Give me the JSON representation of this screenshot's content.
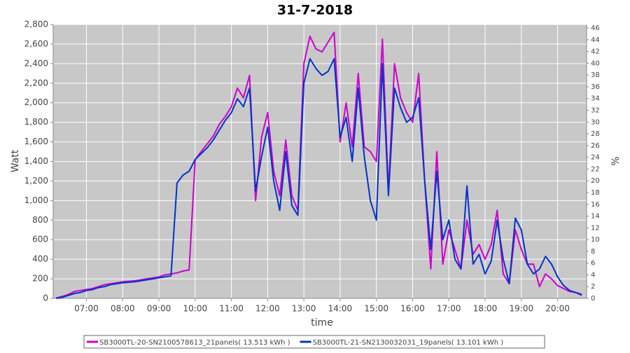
{
  "chart_data": {
    "type": "line",
    "title": "31-7-2018",
    "x_label": "time",
    "y_label": "Watt",
    "y2_label": "%",
    "x": [
      "06:10",
      "06:20",
      "06:30",
      "06:40",
      "06:50",
      "07:00",
      "07:10",
      "07:20",
      "07:30",
      "07:40",
      "07:50",
      "08:00",
      "08:10",
      "08:20",
      "08:30",
      "08:40",
      "08:50",
      "09:00",
      "09:10",
      "09:20",
      "09:30",
      "09:40",
      "09:50",
      "10:00",
      "10:10",
      "10:20",
      "10:30",
      "10:40",
      "10:50",
      "11:00",
      "11:10",
      "11:20",
      "11:30",
      "11:40",
      "11:50",
      "12:00",
      "12:10",
      "12:20",
      "12:30",
      "12:40",
      "12:50",
      "13:00",
      "13:10",
      "13:20",
      "13:30",
      "13:40",
      "13:50",
      "14:00",
      "14:10",
      "14:20",
      "14:30",
      "14:40",
      "14:50",
      "15:00",
      "15:10",
      "15:20",
      "15:30",
      "15:40",
      "15:50",
      "16:00",
      "16:10",
      "16:20",
      "16:30",
      "16:40",
      "16:50",
      "17:00",
      "17:10",
      "17:20",
      "17:30",
      "17:40",
      "17:50",
      "18:00",
      "18:10",
      "18:20",
      "18:30",
      "18:40",
      "18:50",
      "19:00",
      "19:10",
      "19:20",
      "19:30",
      "19:40",
      "19:50",
      "20:00",
      "20:10",
      "20:20",
      "20:30",
      "20:40"
    ],
    "series": [
      {
        "name": "SB3000TL-20-SN2100578613_21panels( 13.513 kWh )",
        "color": "#cc00cc",
        "values": [
          5,
          20,
          40,
          70,
          80,
          90,
          100,
          120,
          140,
          150,
          160,
          170,
          175,
          180,
          190,
          200,
          210,
          220,
          240,
          250,
          260,
          280,
          290,
          1420,
          1500,
          1580,
          1660,
          1780,
          1860,
          1960,
          2150,
          2050,
          2280,
          1000,
          1650,
          1900,
          1300,
          1050,
          1620,
          1050,
          900,
          2400,
          2680,
          2550,
          2520,
          2620,
          2720,
          1600,
          2000,
          1550,
          2300,
          1550,
          1500,
          1400,
          2650,
          1100,
          2400,
          2050,
          1900,
          1800,
          2300,
          1200,
          300,
          1500,
          350,
          700,
          500,
          300,
          800,
          450,
          550,
          400,
          550,
          900,
          250,
          150,
          700,
          500,
          350,
          350,
          120,
          250,
          200,
          130,
          100,
          70,
          60,
          30
        ]
      },
      {
        "name": "SB3000TL-21-SN2130032031_19panels( 13.101 kWh )",
        "color": "#0033cc",
        "values": [
          0,
          10,
          30,
          50,
          60,
          80,
          90,
          110,
          120,
          140,
          150,
          160,
          165,
          170,
          180,
          190,
          200,
          210,
          220,
          230,
          1180,
          1260,
          1300,
          1420,
          1480,
          1540,
          1620,
          1720,
          1820,
          1900,
          2040,
          1960,
          2150,
          1100,
          1450,
          1750,
          1200,
          900,
          1500,
          950,
          850,
          2200,
          2450,
          2350,
          2280,
          2320,
          2450,
          1650,
          1850,
          1400,
          2150,
          1450,
          1000,
          800,
          2400,
          1050,
          2150,
          1950,
          1800,
          1850,
          2050,
          1200,
          500,
          1300,
          600,
          800,
          400,
          300,
          1150,
          350,
          450,
          250,
          380,
          800,
          400,
          150,
          820,
          700,
          350,
          250,
          300,
          430,
          350,
          220,
          130,
          80,
          60,
          40
        ]
      }
    ],
    "xlim": [
      "06:05",
      "20:48"
    ],
    "xticks": [
      "07:00",
      "08:00",
      "09:00",
      "10:00",
      "11:00",
      "12:00",
      "13:00",
      "14:00",
      "15:00",
      "16:00",
      "17:00",
      "18:00",
      "19:00",
      "20:00"
    ],
    "ylim": [
      0,
      2800
    ],
    "yticks": [
      0,
      200,
      400,
      600,
      800,
      {
        "value": 1000,
        "label": "1,000"
      },
      {
        "value": 1200,
        "label": "1,200"
      },
      {
        "value": 1400,
        "label": "1,400"
      },
      {
        "value": 1600,
        "label": "1,600"
      },
      {
        "value": 1800,
        "label": "1,800"
      },
      {
        "value": 2000,
        "label": "2,000"
      },
      {
        "value": 2200,
        "label": "2,200"
      },
      {
        "value": 2400,
        "label": "2,400"
      },
      {
        "value": 2600,
        "label": "2,600"
      },
      {
        "value": 2800,
        "label": "2,800"
      }
    ],
    "y2lim": [
      0,
      46.6
    ],
    "y2ticks": [
      0,
      2,
      4,
      6,
      8,
      10,
      12,
      14,
      16,
      18,
      20,
      22,
      24,
      26,
      28,
      30,
      32,
      34,
      36,
      38,
      40,
      42,
      44,
      46
    ],
    "grid": true,
    "legend": "bottom"
  }
}
